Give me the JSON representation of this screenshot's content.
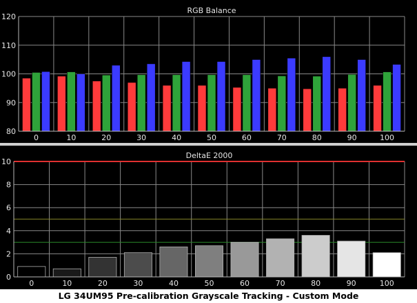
{
  "caption": "LG 34UM95 Pre-calibration Grayscale Tracking - Custom Mode",
  "colors": {
    "background": "#000000",
    "grid": "#8a8a8a",
    "text": "#e6e6e6",
    "red": "#ff3b3b",
    "green": "#2fa33a",
    "blue": "#3b3bff",
    "reference_red": "#e03030",
    "reference_yellow": "#8a8a2a",
    "reference_green": "#2a8a2a"
  },
  "chart_data": [
    {
      "type": "bar",
      "title": "RGB Balance",
      "categories": [
        "0",
        "10",
        "20",
        "30",
        "40",
        "50",
        "60",
        "70",
        "80",
        "90",
        "100"
      ],
      "series": [
        {
          "color": "red",
          "values": [
            98.5,
            99.2,
            97.5,
            97.0,
            96.0,
            96.0,
            95.3,
            95.0,
            94.8,
            95.0,
            96.0
          ]
        },
        {
          "color": "green",
          "values": [
            100.5,
            100.7,
            99.6,
            99.7,
            99.7,
            99.7,
            99.7,
            99.3,
            99.2,
            99.8,
            100.7
          ]
        },
        {
          "color": "blue",
          "values": [
            100.8,
            100.0,
            103.0,
            103.5,
            104.3,
            104.3,
            105.0,
            105.5,
            106.0,
            105.0,
            103.3
          ]
        }
      ],
      "yticks": [
        80,
        90,
        100,
        110,
        120
      ],
      "ylim": [
        80,
        120
      ],
      "grid": true
    },
    {
      "type": "bar",
      "title": "DeltaE 2000",
      "categories": [
        "0",
        "10",
        "20",
        "30",
        "40",
        "50",
        "60",
        "70",
        "80",
        "90",
        "100"
      ],
      "values": [
        0.9,
        0.7,
        1.7,
        2.1,
        2.6,
        2.7,
        3.0,
        3.3,
        3.6,
        3.1,
        2.1
      ],
      "bar_gray": [
        0,
        25,
        51,
        76,
        102,
        127,
        153,
        178,
        204,
        229,
        255
      ],
      "yticks": [
        0,
        2,
        4,
        6,
        8,
        10
      ],
      "ylim": [
        0,
        10
      ],
      "reference_lines": [
        {
          "value": 10,
          "color": "reference_red"
        },
        {
          "value": 5,
          "color": "reference_yellow"
        },
        {
          "value": 3,
          "color": "reference_green"
        }
      ],
      "grid": true
    }
  ]
}
